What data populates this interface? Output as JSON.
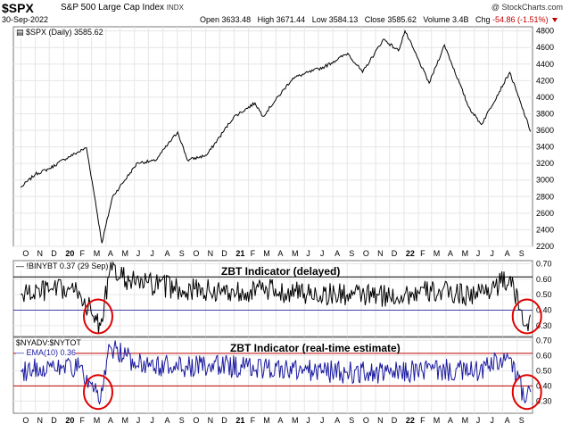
{
  "header": {
    "symbol": "$SPX",
    "description": "S&P 500 Large Cap Index",
    "exchange": "INDX",
    "brand": "@ StockCharts.com",
    "date": "30-Sep-2022",
    "open_label": "Open",
    "open": "3633.48",
    "high_label": "High",
    "high": "3671.44",
    "low_label": "Low",
    "low": "3584.13",
    "close_label": "Close",
    "close": "3585.62",
    "volume_label": "Volume",
    "volume": "3.4B",
    "chg_label": "Chg",
    "chg": "-54.86 (-1.51%)",
    "accent_down": "#c00000"
  },
  "chart_data": [
    {
      "type": "line",
      "legend": "$SPX (Daily) 3585.62",
      "series": [
        {
          "name": "$SPX (Daily)",
          "color": "#000000",
          "x": [
            "2019-10-01",
            "2019-11-01",
            "2019-12-02",
            "2020-01-02",
            "2020-02-19",
            "2020-03-09",
            "2020-03-23",
            "2020-04-15",
            "2020-06-08",
            "2020-07-15",
            "2020-09-02",
            "2020-09-23",
            "2020-11-03",
            "2020-12-31",
            "2021-02-15",
            "2021-03-04",
            "2021-05-07",
            "2021-07-15",
            "2021-09-02",
            "2021-10-04",
            "2021-11-18",
            "2021-12-20",
            "2022-01-03",
            "2022-02-24",
            "2022-03-29",
            "2022-05-20",
            "2022-06-16",
            "2022-08-16",
            "2022-09-30"
          ],
          "y": [
            2910,
            3070,
            3140,
            3250,
            3390,
            2750,
            2240,
            2800,
            3210,
            3230,
            3580,
            3240,
            3300,
            3760,
            3930,
            3770,
            4230,
            4370,
            4530,
            4300,
            4700,
            4560,
            4800,
            4170,
            4630,
            3880,
            3670,
            4300,
            3585
          ]
        }
      ],
      "ylim": [
        2200,
        4850
      ],
      "yticks": [
        2200,
        2400,
        2600,
        2800,
        3000,
        3200,
        3400,
        3600,
        3800,
        4000,
        4200,
        4400,
        4600,
        4800
      ],
      "xticks": [
        "O",
        "N",
        "D",
        "20",
        "F",
        "M",
        "A",
        "M",
        "J",
        "J",
        "A",
        "S",
        "O",
        "N",
        "D",
        "21",
        "F",
        "M",
        "A",
        "M",
        "J",
        "J",
        "A",
        "S",
        "O",
        "N",
        "D",
        "22",
        "F",
        "M",
        "A",
        "M",
        "J",
        "J",
        "A",
        "S"
      ],
      "grid": true
    },
    {
      "type": "line",
      "title": "ZBT Indicator (delayed)",
      "legend": "!BINYBT 0.37 (29 Sep)",
      "series": [
        {
          "name": "!BINYBT",
          "color": "#000000",
          "x": [
            "2019-10-01",
            "2019-12-02",
            "2020-02-03",
            "2020-03-05",
            "2020-03-20",
            "2020-04-09",
            "2020-06-01",
            "2020-09-01",
            "2020-12-01",
            "2021-03-01",
            "2021-06-01",
            "2021-09-01",
            "2021-12-01",
            "2022-03-01",
            "2022-06-01",
            "2022-08-15",
            "2022-09-20",
            "2022-09-29"
          ],
          "y": [
            0.5,
            0.53,
            0.52,
            0.36,
            0.3,
            0.65,
            0.58,
            0.54,
            0.52,
            0.53,
            0.51,
            0.5,
            0.49,
            0.52,
            0.5,
            0.6,
            0.3,
            0.37
          ]
        }
      ],
      "ylim": [
        0.23,
        0.72
      ],
      "yticks": [
        0.3,
        0.4,
        0.5,
        0.6,
        0.7
      ],
      "reference_lines": [
        {
          "y": 0.615,
          "color": "#000000"
        },
        {
          "y": 0.4,
          "color": "#4040a0"
        }
      ],
      "highlight_circles": [
        {
          "x": "2020-03-15",
          "y": 0.36
        },
        {
          "x": "2022-09-22",
          "y": 0.36
        }
      ],
      "grid": true
    },
    {
      "type": "line",
      "title": "ZBT Indicator (real-time estimate)",
      "legend_lines": [
        "$NYADV:$NYTOT",
        "EMA(10) 0.36"
      ],
      "series": [
        {
          "name": "EMA(10)",
          "color": "#1a1aa0",
          "x": [
            "2019-10-01",
            "2019-12-02",
            "2020-02-03",
            "2020-03-05",
            "2020-03-20",
            "2020-04-09",
            "2020-06-01",
            "2020-09-01",
            "2020-12-01",
            "2021-03-01",
            "2021-06-01",
            "2021-09-01",
            "2021-12-01",
            "2022-03-01",
            "2022-06-01",
            "2022-08-15",
            "2022-09-20",
            "2022-09-30"
          ],
          "y": [
            0.5,
            0.53,
            0.52,
            0.36,
            0.3,
            0.66,
            0.56,
            0.52,
            0.53,
            0.52,
            0.5,
            0.49,
            0.48,
            0.51,
            0.49,
            0.58,
            0.3,
            0.36
          ]
        }
      ],
      "ylim": [
        0.22,
        0.72
      ],
      "yticks": [
        0.3,
        0.4,
        0.5,
        0.6,
        0.7
      ],
      "reference_lines": [
        {
          "y": 0.615,
          "color": "#c00000"
        },
        {
          "y": 0.4,
          "color": "#c00000"
        }
      ],
      "highlight_circles": [
        {
          "x": "2020-03-15",
          "y": 0.36
        },
        {
          "x": "2022-09-22",
          "y": 0.36
        }
      ],
      "grid": true
    }
  ]
}
